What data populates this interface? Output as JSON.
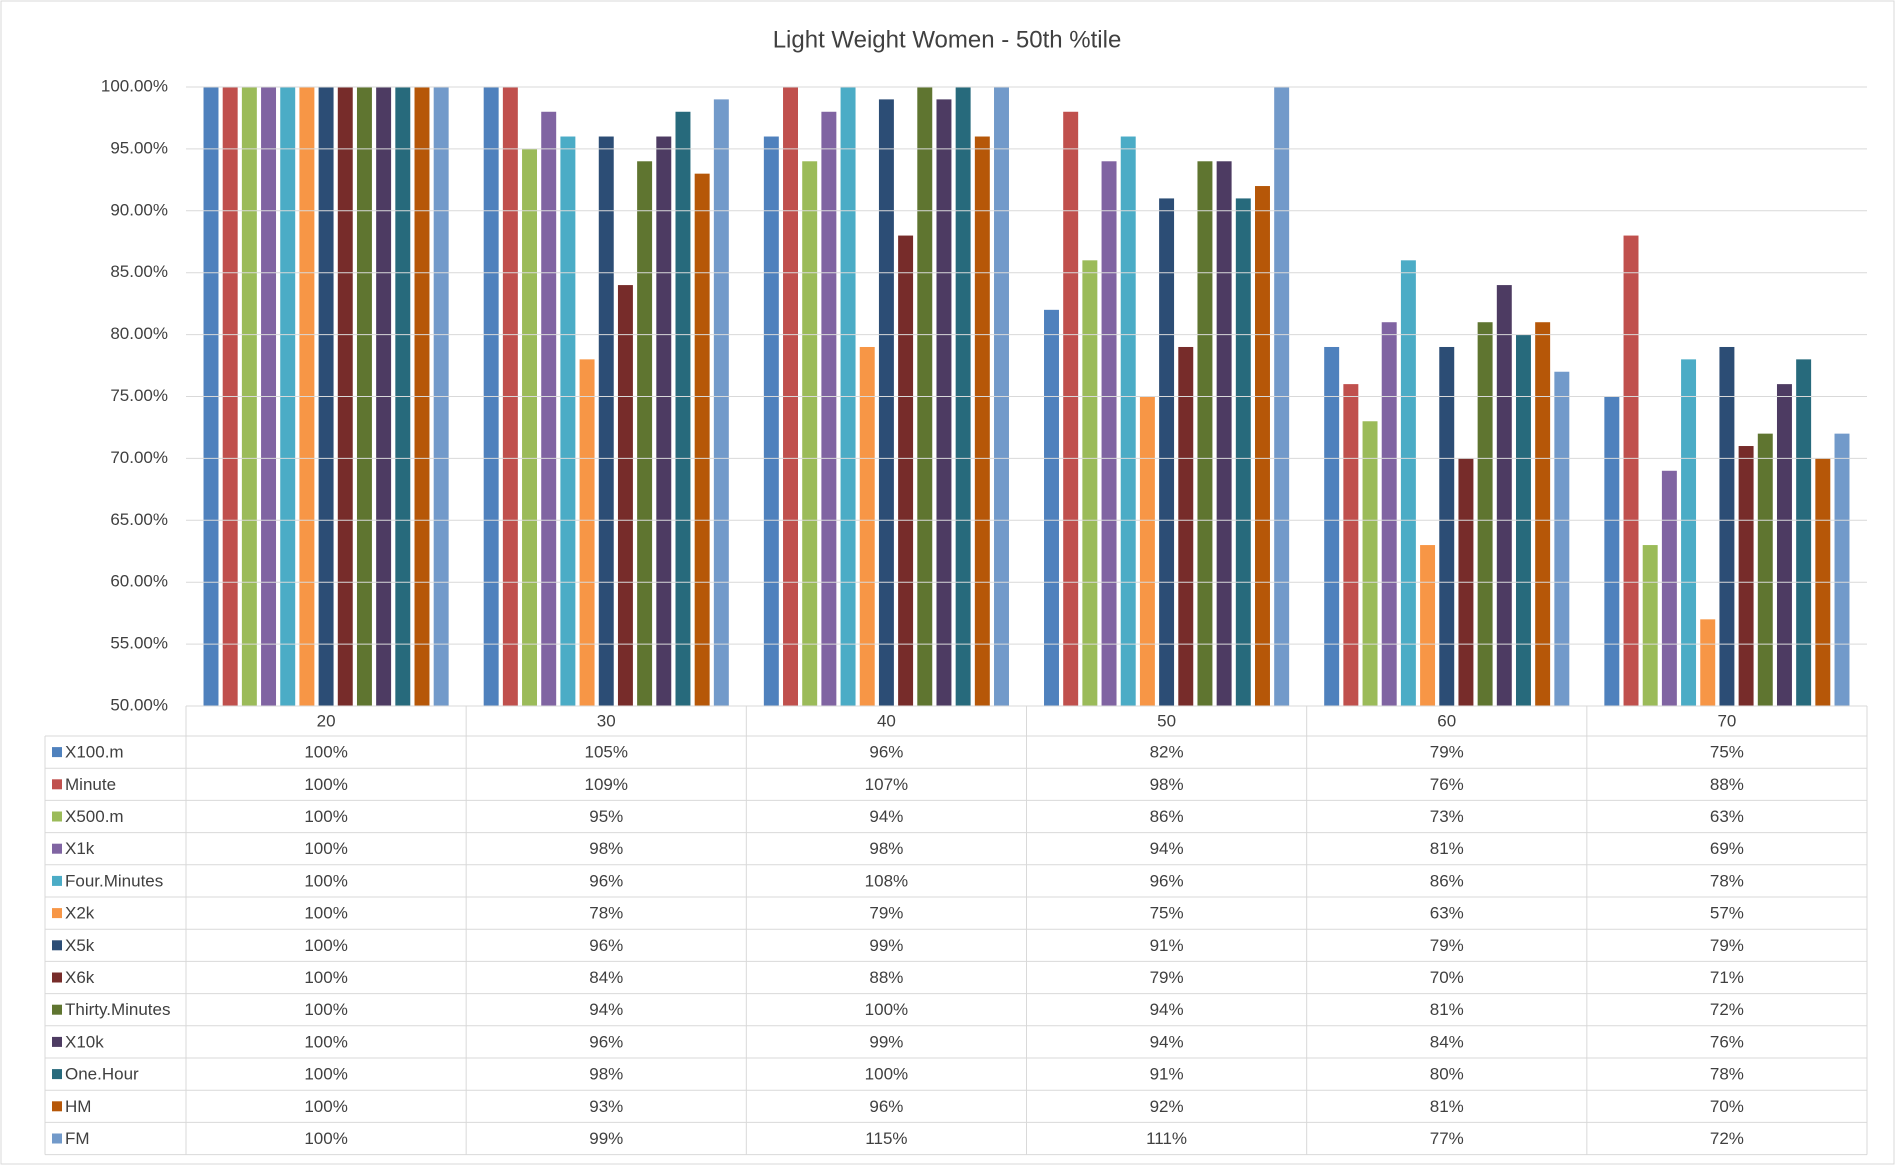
{
  "chart_data": {
    "type": "bar",
    "title": "Light Weight Women - 50th %tile",
    "categories": [
      "20",
      "30",
      "40",
      "50",
      "60",
      "70"
    ],
    "ylim": [
      50,
      100
    ],
    "yticks": [
      {
        "value": 50,
        "label": "50.00%"
      },
      {
        "value": 55,
        "label": "55.00%"
      },
      {
        "value": 60,
        "label": "60.00%"
      },
      {
        "value": 65,
        "label": "65.00%"
      },
      {
        "value": 70,
        "label": "70.00%"
      },
      {
        "value": 75,
        "label": "75.00%"
      },
      {
        "value": 80,
        "label": "80.00%"
      },
      {
        "value": 85,
        "label": "85.00%"
      },
      {
        "value": 90,
        "label": "90.00%"
      },
      {
        "value": 95,
        "label": "95.00%"
      },
      {
        "value": 100,
        "label": "100.00%"
      }
    ],
    "grid": true,
    "series": [
      {
        "name": "X100.m",
        "color": "#4f81bd",
        "values": [
          100,
          105,
          96,
          82,
          79,
          75
        ],
        "value_labels": [
          "100%",
          "105%",
          "96%",
          "82%",
          "79%",
          "75%"
        ]
      },
      {
        "name": "Minute",
        "color": "#c0504d",
        "values": [
          100,
          109,
          107,
          98,
          76,
          88
        ],
        "value_labels": [
          "100%",
          "109%",
          "107%",
          "98%",
          "76%",
          "88%"
        ]
      },
      {
        "name": "X500.m",
        "color": "#9bbb59",
        "values": [
          100,
          95,
          94,
          86,
          73,
          63
        ],
        "value_labels": [
          "100%",
          "95%",
          "94%",
          "86%",
          "73%",
          "63%"
        ]
      },
      {
        "name": "X1k",
        "color": "#8064a2",
        "values": [
          100,
          98,
          98,
          94,
          81,
          69
        ],
        "value_labels": [
          "100%",
          "98%",
          "98%",
          "94%",
          "81%",
          "69%"
        ]
      },
      {
        "name": "Four.Minutes",
        "color": "#4bacc6",
        "values": [
          100,
          96,
          108,
          96,
          86,
          78
        ],
        "value_labels": [
          "100%",
          "96%",
          "108%",
          "96%",
          "86%",
          "78%"
        ]
      },
      {
        "name": "X2k",
        "color": "#f79646",
        "values": [
          100,
          78,
          79,
          75,
          63,
          57
        ],
        "value_labels": [
          "100%",
          "78%",
          "79%",
          "75%",
          "63%",
          "57%"
        ]
      },
      {
        "name": "X5k",
        "color": "#2c4d75",
        "values": [
          100,
          96,
          99,
          91,
          79,
          79
        ],
        "value_labels": [
          "100%",
          "96%",
          "99%",
          "91%",
          "79%",
          "79%"
        ]
      },
      {
        "name": "X6k",
        "color": "#772c2a",
        "values": [
          100,
          84,
          88,
          79,
          70,
          71
        ],
        "value_labels": [
          "100%",
          "84%",
          "88%",
          "79%",
          "70%",
          "71%"
        ]
      },
      {
        "name": "Thirty.Minutes",
        "color": "#5f7530",
        "values": [
          100,
          94,
          100,
          94,
          81,
          72
        ],
        "value_labels": [
          "100%",
          "94%",
          "100%",
          "94%",
          "81%",
          "72%"
        ]
      },
      {
        "name": "X10k",
        "color": "#4d3b62",
        "values": [
          100,
          96,
          99,
          94,
          84,
          76
        ],
        "value_labels": [
          "100%",
          "96%",
          "99%",
          "94%",
          "84%",
          "76%"
        ]
      },
      {
        "name": "One.Hour",
        "color": "#276a7c",
        "values": [
          100,
          98,
          100,
          91,
          80,
          78
        ],
        "value_labels": [
          "100%",
          "98%",
          "100%",
          "91%",
          "80%",
          "78%"
        ]
      },
      {
        "name": "HM",
        "color": "#b65708",
        "values": [
          100,
          93,
          96,
          92,
          81,
          70
        ],
        "value_labels": [
          "100%",
          "93%",
          "96%",
          "92%",
          "81%",
          "70%"
        ]
      },
      {
        "name": "FM",
        "color": "#729aca",
        "values": [
          100,
          99,
          115,
          111,
          77,
          72
        ],
        "value_labels": [
          "100%",
          "99%",
          "115%",
          "111%",
          "77%",
          "72%"
        ]
      }
    ]
  }
}
